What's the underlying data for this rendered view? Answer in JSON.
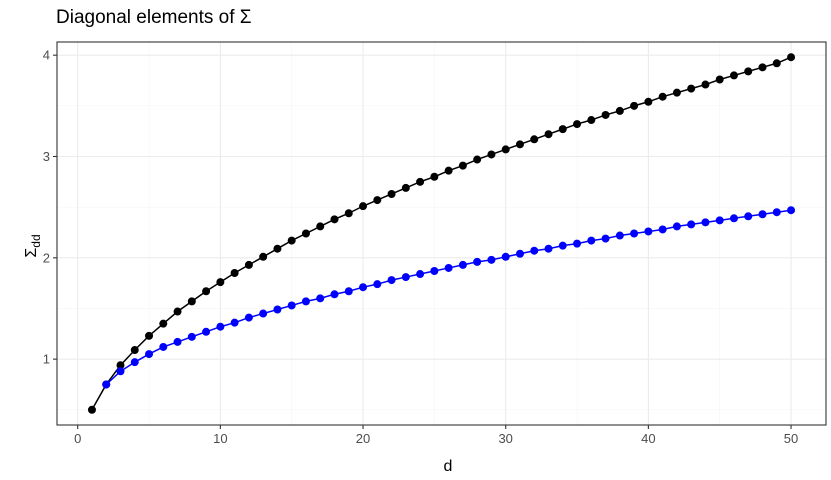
{
  "colors": {
    "series_black": "#000000",
    "series_blue": "#0000ff",
    "grid_major": "#ebebeb",
    "grid_minor": "#f5f5f5",
    "panel_border": "#333333",
    "tick_text": "#4d4d4d"
  },
  "chart_data": {
    "type": "line",
    "title": "Diagonal elements of Σ",
    "xlabel": "d",
    "ylabel_main": "Σ",
    "ylabel_sub": "dd",
    "xlim": [
      -1.45,
      52.45
    ],
    "ylim": [
      0.35,
      4.13
    ],
    "x_ticks": [
      0,
      10,
      20,
      30,
      40,
      50
    ],
    "y_ticks": [
      1,
      2,
      3,
      4
    ],
    "grid": true,
    "markers": true,
    "series": [
      {
        "color": "#000000",
        "x": [
          1,
          2,
          3,
          4,
          5,
          6,
          7,
          8,
          9,
          10,
          11,
          12,
          13,
          14,
          15,
          16,
          17,
          18,
          19,
          20,
          21,
          22,
          23,
          24,
          25,
          26,
          27,
          28,
          29,
          30,
          31,
          32,
          33,
          34,
          35,
          36,
          37,
          38,
          39,
          40,
          41,
          42,
          43,
          44,
          45,
          46,
          47,
          48,
          49,
          50
        ],
        "values": [
          0.5,
          0.75,
          0.94,
          1.09,
          1.23,
          1.35,
          1.47,
          1.57,
          1.67,
          1.76,
          1.85,
          1.93,
          2.01,
          2.09,
          2.17,
          2.24,
          2.31,
          2.38,
          2.44,
          2.51,
          2.57,
          2.63,
          2.69,
          2.75,
          2.8,
          2.86,
          2.91,
          2.97,
          3.02,
          3.07,
          3.12,
          3.17,
          3.22,
          3.27,
          3.32,
          3.36,
          3.41,
          3.45,
          3.5,
          3.54,
          3.59,
          3.63,
          3.67,
          3.71,
          3.76,
          3.8,
          3.84,
          3.88,
          3.92,
          3.98
        ]
      },
      {
        "color": "#0000ff",
        "x": [
          2,
          3,
          4,
          5,
          6,
          7,
          8,
          9,
          10,
          11,
          12,
          13,
          14,
          15,
          16,
          17,
          18,
          19,
          20,
          21,
          22,
          23,
          24,
          25,
          26,
          27,
          28,
          29,
          30,
          31,
          32,
          33,
          34,
          35,
          36,
          37,
          38,
          39,
          40,
          41,
          42,
          43,
          44,
          45,
          46,
          47,
          48,
          49,
          50
        ],
        "values": [
          0.75,
          0.88,
          0.97,
          1.05,
          1.12,
          1.17,
          1.22,
          1.27,
          1.32,
          1.36,
          1.41,
          1.45,
          1.49,
          1.53,
          1.57,
          1.6,
          1.64,
          1.67,
          1.71,
          1.74,
          1.78,
          1.81,
          1.84,
          1.87,
          1.9,
          1.93,
          1.96,
          1.98,
          2.01,
          2.04,
          2.07,
          2.09,
          2.12,
          2.14,
          2.17,
          2.19,
          2.22,
          2.24,
          2.26,
          2.28,
          2.31,
          2.33,
          2.35,
          2.37,
          2.39,
          2.41,
          2.43,
          2.45,
          2.47
        ]
      }
    ]
  }
}
